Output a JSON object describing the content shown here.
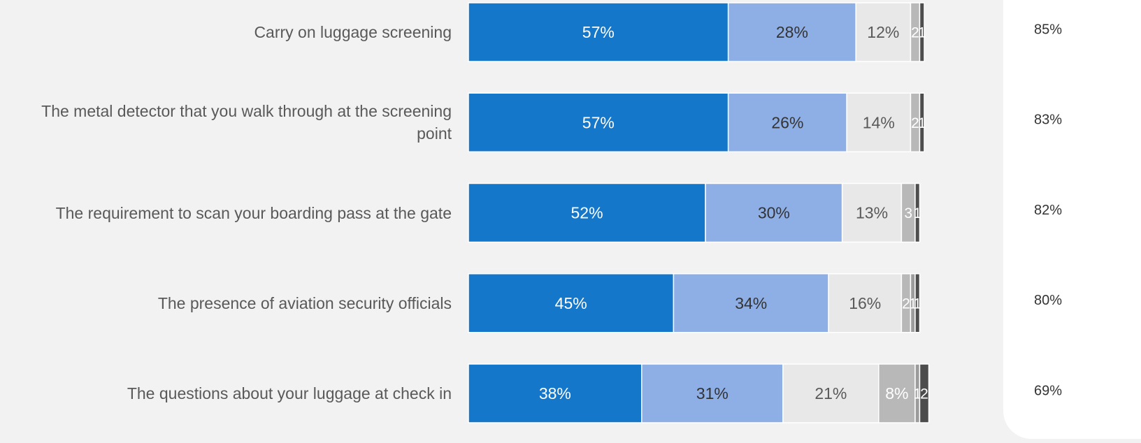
{
  "chart_data": {
    "type": "bar",
    "orientation": "horizontal",
    "stacked": true,
    "categories": [
      "Carry on luggage screening",
      "The metal detector that you walk through at the screening point",
      "The requirement to scan your boarding pass at the gate",
      "The presence of aviation security officials",
      "The questions about your luggage at check in"
    ],
    "xlim": [
      0,
      100
    ],
    "series": [
      {
        "color": "#1577c9",
        "label_color": "#ffffff",
        "values": [
          57,
          57,
          52,
          45,
          38
        ],
        "value_labels": [
          "57%",
          "57%",
          "52%",
          "45%",
          "38%"
        ]
      },
      {
        "color": "#8eaee6",
        "label_color": "#333333",
        "values": [
          28,
          26,
          30,
          34,
          31
        ],
        "value_labels": [
          "28%",
          "26%",
          "30%",
          "34%",
          "31%"
        ]
      },
      {
        "color": "#e8e8e8",
        "label_color": "#595959",
        "values": [
          12,
          14,
          13,
          16,
          21
        ],
        "value_labels": [
          "12%",
          "14%",
          "13%",
          "16%",
          "21%"
        ]
      },
      {
        "color": "#b8b8b8",
        "label_color": "#ffffff",
        "values": [
          2,
          2,
          3,
          2,
          8
        ],
        "value_labels": [
          "2",
          "2",
          "3",
          "2",
          "8%"
        ]
      },
      {
        "color": "#9c9c9c",
        "label_color": "#ffffff",
        "values": [
          0,
          0,
          0,
          1,
          1
        ],
        "value_labels": [
          null,
          null,
          null,
          "1",
          "1"
        ]
      },
      {
        "color": "#4d4d4d",
        "label_color": "#ffffff",
        "values": [
          1,
          1,
          1,
          1,
          2
        ],
        "value_labels": [
          "1",
          "1",
          "1",
          "1",
          "2"
        ]
      }
    ],
    "totals": {
      "values": [
        85,
        83,
        82,
        80,
        69
      ],
      "value_labels": [
        "85%",
        "83%",
        "82%",
        "80%",
        "69%"
      ]
    }
  }
}
